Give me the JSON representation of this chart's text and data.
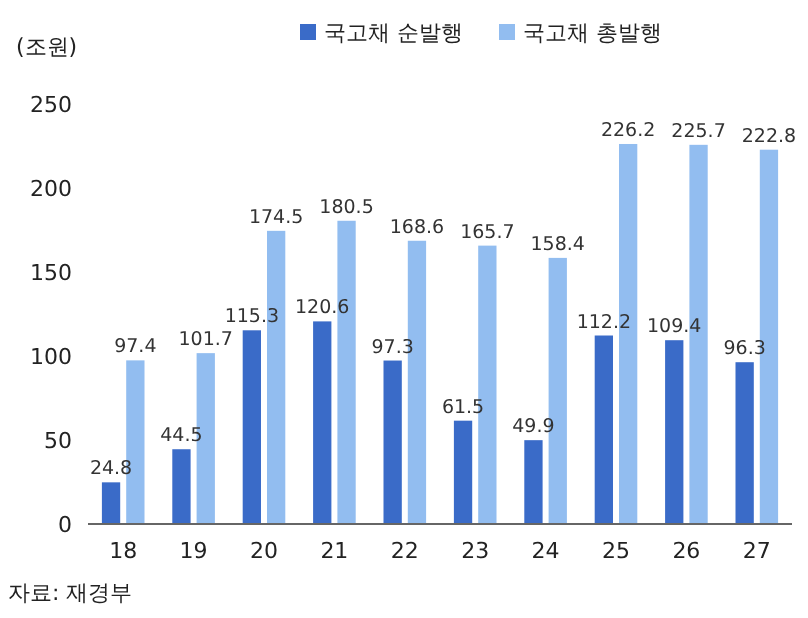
{
  "chart_data": {
    "type": "bar",
    "ylabel": "(조원)",
    "categories": [
      "18",
      "19",
      "20",
      "21",
      "22",
      "23",
      "24",
      "25",
      "26",
      "27"
    ],
    "series": [
      {
        "name": "국고채 순발행",
        "color": "#3a6bc8",
        "values": [
          24.8,
          44.5,
          115.3,
          120.6,
          97.3,
          61.5,
          49.9,
          112.2,
          109.4,
          96.3
        ]
      },
      {
        "name": "국고채 총발행",
        "color": "#92bdf0",
        "values": [
          97.4,
          101.7,
          174.5,
          180.5,
          168.6,
          165.7,
          158.4,
          226.2,
          225.7,
          222.8
        ]
      }
    ],
    "ylim": [
      0,
      250
    ],
    "yticks": [
      0,
      50,
      100,
      150,
      200,
      250
    ],
    "data_labels": true,
    "legend": "top",
    "annotations": [
      "자료: 재경부"
    ]
  }
}
